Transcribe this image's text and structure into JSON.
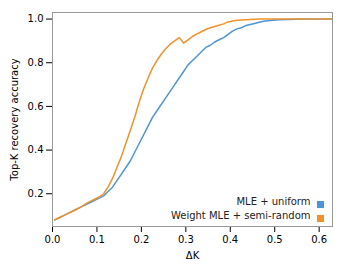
{
  "chart_data": {
    "type": "line",
    "xlabel": "ΔK",
    "ylabel": "Top-K recovery accuracy",
    "xlim": [
      0.0,
      0.63
    ],
    "ylim": [
      0.05,
      1.03
    ],
    "xticks": [
      {
        "value": 0.0,
        "label": "0.0"
      },
      0.1,
      0.2,
      0.3,
      0.4,
      0.5,
      0.6
    ],
    "yticks": [
      0.2,
      0.4,
      0.6,
      0.8,
      {
        "value": 1.0,
        "label": "1.0"
      }
    ],
    "legend": "lower right",
    "x": [
      0.005,
      0.015,
      0.025,
      0.035,
      0.045,
      0.055,
      0.065,
      0.075,
      0.085,
      0.095,
      0.105,
      0.115,
      0.125,
      0.135,
      0.145,
      0.155,
      0.165,
      0.175,
      0.185,
      0.195,
      0.205,
      0.215,
      0.225,
      0.235,
      0.245,
      0.255,
      0.265,
      0.275,
      0.285,
      0.295,
      0.305,
      0.315,
      0.325,
      0.335,
      0.345,
      0.355,
      0.365,
      0.375,
      0.385,
      0.395,
      0.405,
      0.415,
      0.425,
      0.435,
      0.445,
      0.455,
      0.465,
      0.475,
      0.49,
      0.51,
      0.53,
      0.55,
      0.57,
      0.59,
      0.61,
      0.63
    ],
    "series": [
      {
        "name": "MLE + uniform",
        "color": "#4c96d7",
        "values": [
          0.08,
          0.09,
          0.1,
          0.11,
          0.12,
          0.13,
          0.14,
          0.15,
          0.16,
          0.17,
          0.18,
          0.19,
          0.21,
          0.23,
          0.26,
          0.29,
          0.32,
          0.35,
          0.39,
          0.43,
          0.47,
          0.51,
          0.55,
          0.58,
          0.61,
          0.64,
          0.67,
          0.7,
          0.73,
          0.76,
          0.79,
          0.81,
          0.83,
          0.85,
          0.87,
          0.88,
          0.895,
          0.905,
          0.915,
          0.93,
          0.945,
          0.955,
          0.96,
          0.97,
          0.975,
          0.98,
          0.985,
          0.99,
          0.993,
          0.997,
          0.998,
          0.999,
          1.0,
          1.0,
          1.0,
          1.0
        ]
      },
      {
        "name": "Weight MLE + semi-random",
        "color": "#f0922b",
        "values": [
          0.08,
          0.09,
          0.1,
          0.11,
          0.12,
          0.13,
          0.14,
          0.155,
          0.165,
          0.175,
          0.185,
          0.2,
          0.23,
          0.27,
          0.32,
          0.37,
          0.43,
          0.49,
          0.55,
          0.62,
          0.68,
          0.73,
          0.775,
          0.81,
          0.84,
          0.865,
          0.885,
          0.9,
          0.915,
          0.89,
          0.905,
          0.92,
          0.932,
          0.942,
          0.952,
          0.96,
          0.966,
          0.972,
          0.978,
          0.987,
          0.991,
          0.994,
          0.996,
          0.997,
          0.998,
          0.999,
          1.0,
          1.0,
          1.0,
          1.0,
          1.0,
          1.0,
          1.0,
          1.0,
          1.0,
          1.0
        ]
      }
    ]
  }
}
